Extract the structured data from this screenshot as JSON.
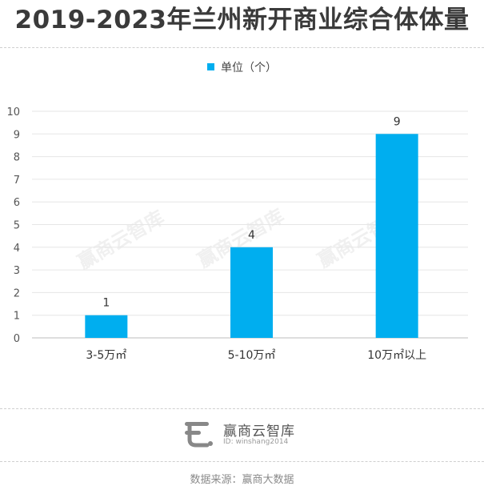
{
  "title": "2019-2023年兰州新开商业综合体体量",
  "chart_data": {
    "type": "bar",
    "categories": [
      "3-5万㎡",
      "5-10万㎡",
      "10万㎡以上"
    ],
    "series": [
      {
        "name": "单位（个）",
        "values": [
          1,
          4,
          9
        ]
      }
    ],
    "data_labels": [
      "1",
      "4",
      "9"
    ],
    "ylim": [
      0,
      10
    ],
    "yticks": [
      "0",
      "1",
      "2",
      "3",
      "4",
      "5",
      "6",
      "7",
      "8",
      "9",
      "10"
    ],
    "grid": true,
    "legend_position": "top-center",
    "bar_color": "#00aeef"
  },
  "watermark": "赢商云智库",
  "brand": {
    "name": "赢商云智库",
    "id": "ID: winshang2014"
  },
  "source": "数据来源：赢商大数据"
}
